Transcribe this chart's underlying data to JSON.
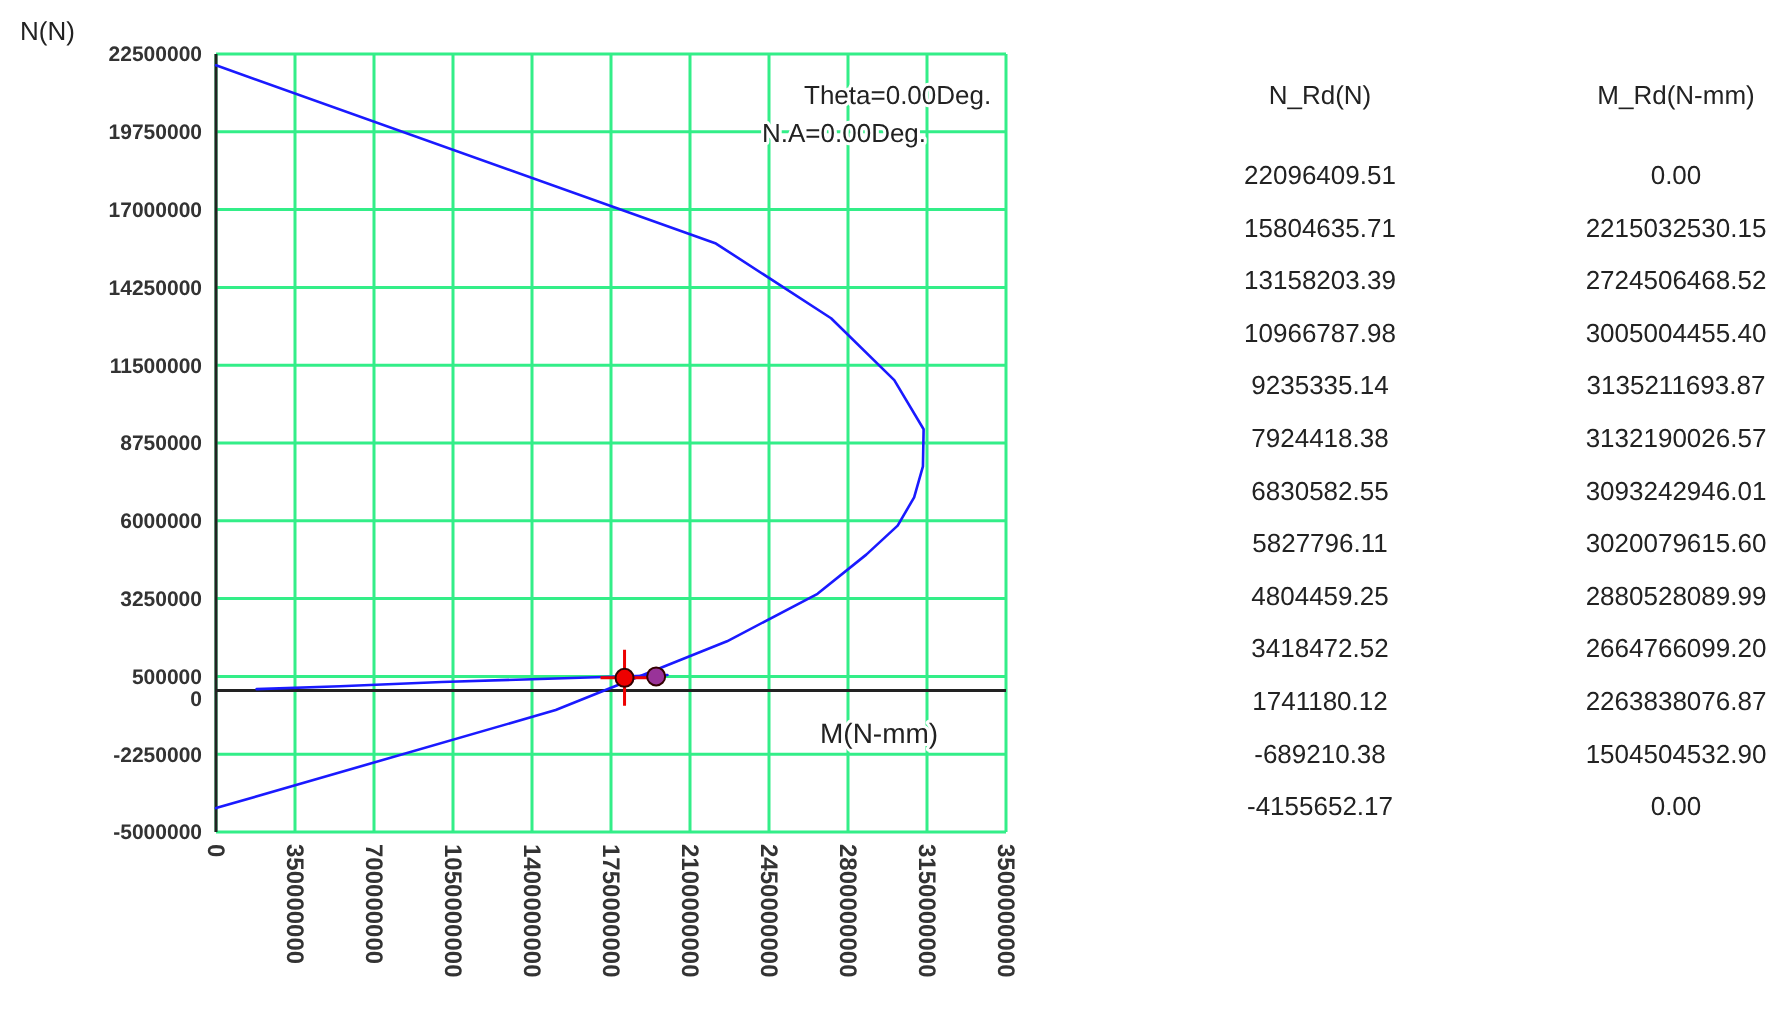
{
  "chart_data": [
    {
      "type": "line",
      "xlabel": "M(N-mm)",
      "ylabel": "N(N)",
      "annotations": [
        "Theta=0.00Deg.",
        "N.A=0.00Deg."
      ],
      "xlim": [
        0,
        3500000000
      ],
      "xticks": [
        0,
        350000000,
        700000000,
        1050000000,
        1400000000,
        1750000000,
        2100000000,
        2450000000,
        2800000000,
        3150000000,
        3500000000
      ],
      "ylim": [
        -5000000,
        22500000
      ],
      "yticks": [
        -5000000,
        -2250000,
        0,
        500000,
        3250000,
        6000000,
        8750000,
        11500000,
        14250000,
        17000000,
        19750000,
        22500000
      ],
      "grid": true,
      "series": [
        {
          "type": "line",
          "color": "#1a1aff",
          "x": [
            0,
            2215000000,
            2725000000,
            3005000000,
            3135000000,
            3132000000,
            3093000000,
            3020000000,
            2881000000,
            2665000000,
            2264000000,
            1505000000,
            0
          ],
          "values": [
            22100000,
            15800000,
            13160000,
            10970000,
            9235000,
            7924000,
            6831000,
            5828000,
            4804000,
            3418000,
            1741000,
            -689000,
            -4156000
          ]
        },
        {
          "type": "line",
          "color": "#1a1aff",
          "x": [
            180000000,
            550000000,
            1000000000,
            1400000000,
            2000000000
          ],
          "values": [
            50000,
            150000,
            300000,
            400000,
            550000
          ]
        },
        {
          "type": "scatter",
          "color": "#ee0000",
          "x": [
            1810000000
          ],
          "values": [
            450000
          ]
        },
        {
          "type": "scatter",
          "color": "#993399",
          "x": [
            1950000000
          ],
          "values": [
            500000
          ]
        }
      ]
    },
    {
      "type": "other",
      "annotations": [
        "N_Rd(N)",
        "M_Rd(N-mm)",
        "22096409.51",
        "0.00",
        "15804635.71",
        "2215032530.15",
        "13158203.39",
        "2724506468.52",
        "10966787.98",
        "3005004455.40",
        "9235335.14",
        "3135211693.87",
        "7924418.38",
        "3132190026.57",
        "6830582.55",
        "3093242946.01",
        "5827796.11",
        "3020079615.60",
        "4804459.25",
        "2880528089.99",
        "3418472.52",
        "2664766099.20",
        "1741180.12",
        "2263838076.87",
        "-689210.38",
        "1504504532.90",
        "-4155652.17",
        "0.00"
      ]
    }
  ]
}
